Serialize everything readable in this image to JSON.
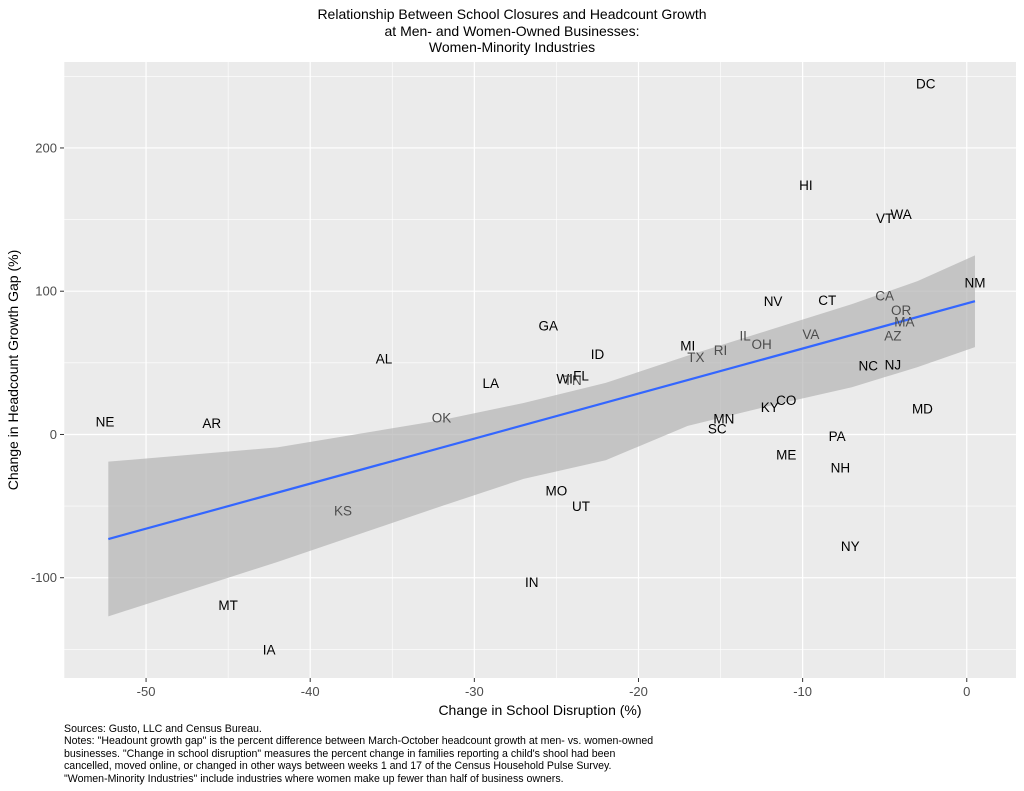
{
  "title_lines": [
    "Relationship Between School Closures and Headcount Growth",
    "at Men- and Women-Owned Businesses:",
    "Women-Minority Industries"
  ],
  "notes_lines": [
    "Sources: Gusto, LLC and Census Bureau.",
    "Notes: \"Headount growth gap\" is the percent difference between March-October headcount growth at men- vs. women-owned",
    "businesses. \"Change in school disruption\" measures the percent  change in families reporting a child's shool had been",
    "cancelled, moved online, or changed in other ways between weeks 1 and 17 of the Census Household Pulse Survey.",
    "\"Women-Minority Industries\" include industries where women make up fewer than half of business owners."
  ],
  "colors": {
    "panel_bg": "#ebebeb",
    "grid": "#ffffff",
    "fit_line": "#3366ff",
    "ribbon": "#b3b3b3",
    "label_dark": "#000000",
    "label_grey": "#4d4d4d"
  },
  "chart_data": {
    "type": "scatter",
    "xlabel": "Change in School Disruption (%)",
    "ylabel": "Change in Headcount Growth Gap (%)",
    "xlim": [
      -55,
      3
    ],
    "ylim": [
      -170,
      260
    ],
    "x_ticks": [
      -50,
      -40,
      -30,
      -20,
      -10,
      0
    ],
    "y_ticks": [
      -100,
      0,
      100,
      200
    ],
    "grid": true,
    "points": [
      {
        "label": "NE",
        "x": -52.5,
        "y": 9,
        "grey": false
      },
      {
        "label": "AR",
        "x": -46,
        "y": 8,
        "grey": false
      },
      {
        "label": "AL",
        "x": -35.5,
        "y": 53,
        "grey": false
      },
      {
        "label": "OK",
        "x": -32,
        "y": 12,
        "grey": true
      },
      {
        "label": "KS",
        "x": -38,
        "y": -53,
        "grey": true
      },
      {
        "label": "MT",
        "x": -45,
        "y": -119,
        "grey": false
      },
      {
        "label": "IA",
        "x": -42.5,
        "y": -150,
        "grey": false
      },
      {
        "label": "LA",
        "x": -29,
        "y": 36,
        "grey": false
      },
      {
        "label": "GA",
        "x": -25.5,
        "y": 76,
        "grey": false
      },
      {
        "label": "ID",
        "x": -22.5,
        "y": 56,
        "grey": false
      },
      {
        "label": "WI",
        "x": -24.5,
        "y": 39,
        "grey": false
      },
      {
        "label": "TN",
        "x": -24,
        "y": 38,
        "grey": true
      },
      {
        "label": "FL",
        "x": -23.5,
        "y": 41,
        "grey": false
      },
      {
        "label": "MO",
        "x": -25,
        "y": -39,
        "grey": false
      },
      {
        "label": "UT",
        "x": -23.5,
        "y": -50,
        "grey": false
      },
      {
        "label": "IN",
        "x": -26.5,
        "y": -103,
        "grey": false
      },
      {
        "label": "MI",
        "x": -17,
        "y": 62,
        "grey": false
      },
      {
        "label": "TX",
        "x": -16.5,
        "y": 54,
        "grey": true
      },
      {
        "label": "RI",
        "x": -15,
        "y": 59,
        "grey": true
      },
      {
        "label": "IL",
        "x": -13.5,
        "y": 69,
        "grey": true
      },
      {
        "label": "OH",
        "x": -12.5,
        "y": 63,
        "grey": true
      },
      {
        "label": "MN",
        "x": -14.8,
        "y": 11,
        "grey": false
      },
      {
        "label": "SC",
        "x": -15.2,
        "y": 4,
        "grey": false
      },
      {
        "label": "KY",
        "x": -12,
        "y": 19,
        "grey": false
      },
      {
        "label": "CO",
        "x": -11,
        "y": 24,
        "grey": false
      },
      {
        "label": "ME",
        "x": -11,
        "y": -14,
        "grey": false
      },
      {
        "label": "NV",
        "x": -11.8,
        "y": 93,
        "grey": false
      },
      {
        "label": "CT",
        "x": -8.5,
        "y": 94,
        "grey": false
      },
      {
        "label": "VA",
        "x": -9.5,
        "y": 70,
        "grey": true
      },
      {
        "label": "HI",
        "x": -9.8,
        "y": 174,
        "grey": false
      },
      {
        "label": "VT",
        "x": -5,
        "y": 151,
        "grey": false
      },
      {
        "label": "WA",
        "x": -4,
        "y": 154,
        "grey": false
      },
      {
        "label": "DC",
        "x": -2.5,
        "y": 245,
        "grey": false
      },
      {
        "label": "NM",
        "x": 0.5,
        "y": 106,
        "grey": false
      },
      {
        "label": "CA",
        "x": -5,
        "y": 97,
        "grey": true
      },
      {
        "label": "OR",
        "x": -4,
        "y": 87,
        "grey": true
      },
      {
        "label": "MA",
        "x": -3.8,
        "y": 79,
        "grey": true
      },
      {
        "label": "AZ",
        "x": -4.5,
        "y": 69,
        "grey": true
      },
      {
        "label": "NC",
        "x": -6,
        "y": 48,
        "grey": false
      },
      {
        "label": "NJ",
        "x": -4.5,
        "y": 49,
        "grey": false
      },
      {
        "label": "MD",
        "x": -2.7,
        "y": 18,
        "grey": false
      },
      {
        "label": "PA",
        "x": -7.9,
        "y": -1,
        "grey": false
      },
      {
        "label": "NH",
        "x": -7.7,
        "y": -23,
        "grey": false
      },
      {
        "label": "NY",
        "x": -7.1,
        "y": -78,
        "grey": false
      }
    ],
    "fit": {
      "x": [
        -52.3,
        0.5
      ],
      "y": [
        -73,
        93
      ]
    },
    "confidence_band": {
      "x": [
        -52.3,
        -42,
        -32,
        -27,
        -22,
        -17,
        -12,
        -7,
        -3,
        0.5
      ],
      "upper": [
        -19,
        -9,
        10,
        22,
        36,
        55,
        73,
        91,
        107,
        125
      ],
      "lower": [
        -127,
        -89,
        -50,
        -31,
        -18,
        6,
        20,
        33,
        47,
        61
      ]
    }
  }
}
